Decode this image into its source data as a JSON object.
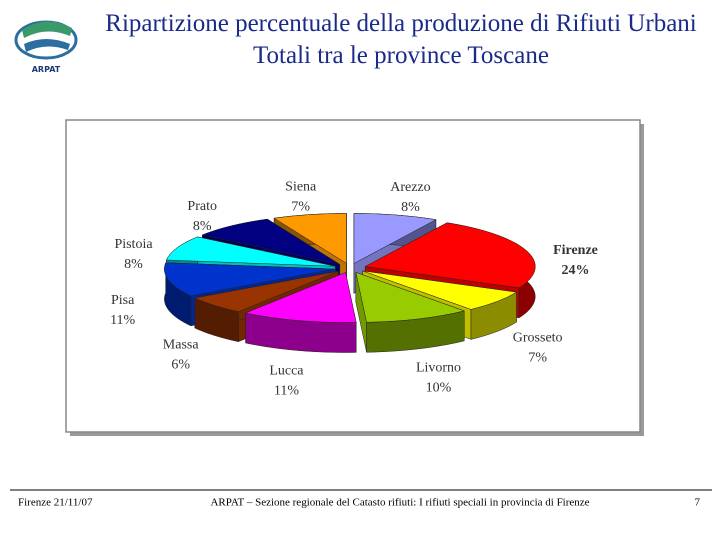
{
  "logo": {
    "text": "ARPAT"
  },
  "chart_data": {
    "type": "pie3d",
    "title": "Ripartizione percentuale della produzione di Rifiuti Urbani Totali tra le province Toscane",
    "categories": [
      "Arezzo",
      "Firenze",
      "Grosseto",
      "Livorno",
      "Lucca",
      "Massa",
      "Pisa",
      "Pistoia",
      "Prato",
      "Siena"
    ],
    "values": [
      8,
      24,
      7,
      10,
      11,
      6,
      11,
      8,
      8,
      7
    ],
    "value_labels": [
      "8%",
      "24%",
      "7%",
      "10%",
      "11%",
      "6%",
      "11%",
      "8%",
      "8%",
      "7%"
    ],
    "colors": [
      "#9999ff",
      "#ff0000",
      "#ffff00",
      "#99cc00",
      "#ff00ff",
      "#993300",
      "#0033cc",
      "#00ffff",
      "#000080",
      "#ff9900"
    ],
    "bold_categories": [
      "Firenze"
    ]
  },
  "footer": {
    "date": "Firenze 21/11/07",
    "text": "ARPAT – Sezione regionale del Catasto rifiuti: I rifiuti speciali in provincia di Firenze",
    "page": "7"
  }
}
